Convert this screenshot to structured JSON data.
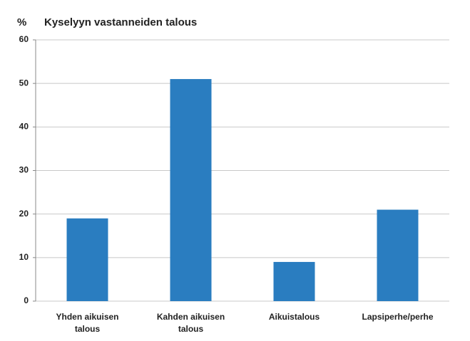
{
  "chart_data": {
    "type": "bar",
    "title": "Kyselyyn vastanneiden talous",
    "y_label": "%",
    "categories": [
      "Yhden aikuisen talous",
      "Kahden aikuisen talous",
      "Aikuistalous",
      "Lapsiperhe/perhe"
    ],
    "values": [
      19,
      51,
      9,
      21
    ],
    "color": "#2a7dc0",
    "ylim": [
      0,
      60
    ],
    "yticks": [
      0,
      10,
      20,
      30,
      40,
      50,
      60
    ],
    "grid": true
  }
}
